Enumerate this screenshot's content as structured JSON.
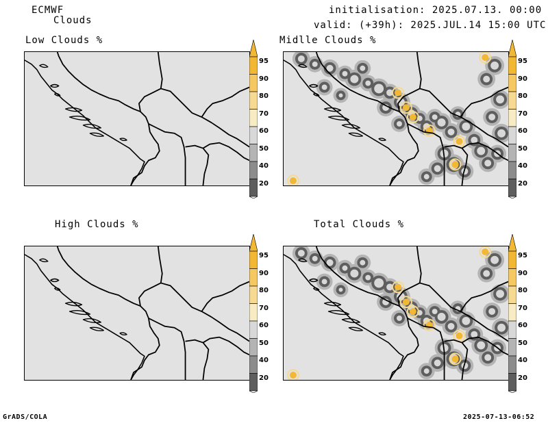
{
  "header": {
    "model": "ECMWF",
    "field": "Clouds",
    "init": "initialisation: 2025.07.13. 00:00 UTC",
    "valid": "valid: (+39h): 2025.JUL.14 15:00 UTC"
  },
  "panels": [
    {
      "title": "Low Clouds %"
    },
    {
      "title": "Midlle Clouds %"
    },
    {
      "title": "High Clouds %"
    },
    {
      "title": "Total Clouds %"
    }
  ],
  "legend": {
    "ticks": [
      "95",
      "90",
      "80",
      "70",
      "60",
      "50",
      "40",
      "20"
    ],
    "colors": [
      "#f2b733",
      "#f5c861",
      "#f6da92",
      "#f8ecc4",
      "#d8d8d8",
      "#b4b4b4",
      "#8c8c8c",
      "#5e5e5e"
    ]
  },
  "footer": {
    "left": "GrADS/COLA",
    "right": "2025-07-13-06:52"
  }
}
